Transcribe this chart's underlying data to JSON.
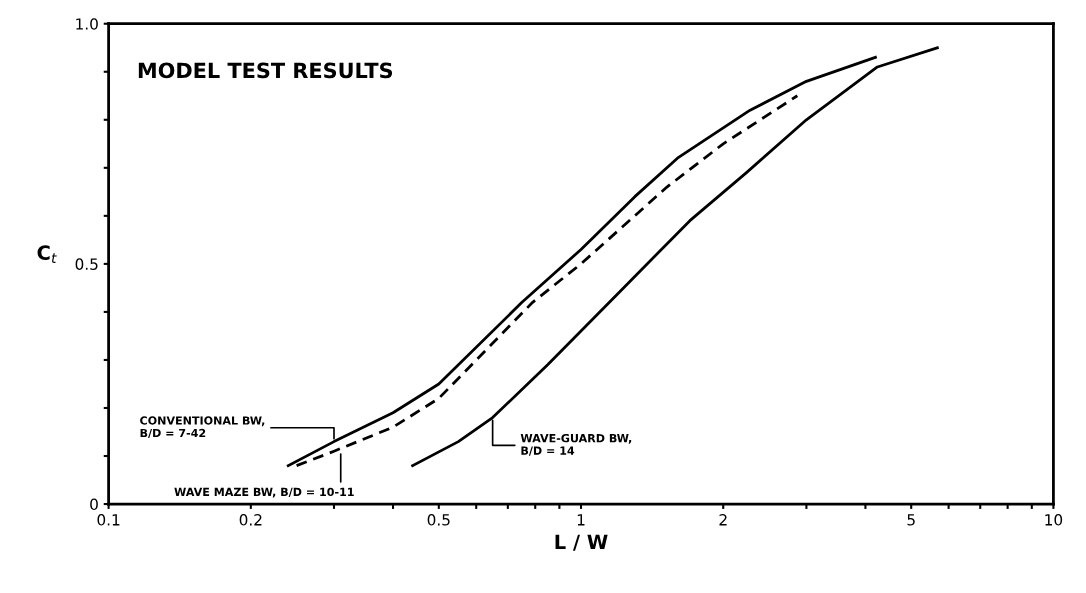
{
  "chart_data": {
    "type": "line",
    "title": "MODEL TEST RESULTS",
    "xlabel": "L / W",
    "ylabel": "C$_{t}$",
    "log": "x",
    "xlim": [
      0.1,
      10
    ],
    "xticks": [
      {
        "value": 0.1,
        "label": "0.1"
      },
      0.2,
      {
        "value": 0.3,
        "label": null
      },
      {
        "value": 0.4,
        "label": null
      },
      0.5,
      {
        "value": 0.6,
        "label": null
      },
      {
        "value": 0.7,
        "label": null
      },
      {
        "value": 0.8,
        "label": null
      },
      {
        "value": 0.9,
        "label": null
      },
      1,
      2,
      {
        "value": 3,
        "label": null
      },
      {
        "value": 4,
        "label": null
      },
      5,
      {
        "value": 6,
        "label": null
      },
      {
        "value": 7,
        "label": null
      },
      {
        "value": 8,
        "label": null
      },
      {
        "value": 9,
        "label": null
      },
      10
    ],
    "ylim": [
      0,
      1.0
    ],
    "yticks": [
      0,
      {
        "value": 0.1,
        "label": null
      },
      {
        "value": 0.2,
        "label": null
      },
      {
        "value": 0.3,
        "label": null
      },
      {
        "value": 0.4,
        "label": null
      },
      0.5,
      {
        "value": 0.6,
        "label": null
      },
      {
        "value": 0.7,
        "label": null
      },
      {
        "value": 0.8,
        "label": null
      },
      {
        "value": 0.9,
        "label": null
      },
      {
        "value": 1.0,
        "label": "1.0"
      }
    ],
    "grid": false,
    "legend": false,
    "marker": "none",
    "series": [
      {
        "color": "#000000",
        "line_style": "solid",
        "x": [
          0.24,
          0.3,
          0.4,
          0.5,
          0.75,
          1.0,
          1.3,
          1.6,
          2.28,
          3.0,
          4.2
        ],
        "values": [
          0.08,
          0.13,
          0.19,
          0.25,
          0.42,
          0.53,
          0.64,
          0.72,
          0.82,
          0.88,
          0.93
        ]
      },
      {
        "color": "#000000",
        "line_style": "dashed",
        "x": [
          0.25,
          0.3,
          0.4,
          0.5,
          0.79,
          1.0,
          1.52,
          2.0,
          2.87
        ],
        "values": [
          0.08,
          0.11,
          0.16,
          0.22,
          0.42,
          0.5,
          0.66,
          0.75,
          0.85
        ]
      },
      {
        "color": "#000000",
        "line_style": "solid",
        "x": [
          0.44,
          0.55,
          0.65,
          0.85,
          1.23,
          1.7,
          2.24,
          3.0,
          4.24,
          5.68
        ],
        "values": [
          0.08,
          0.13,
          0.18,
          0.29,
          0.45,
          0.59,
          0.69,
          0.8,
          0.91,
          0.95
        ]
      }
    ],
    "annotations": [
      {
        "text": "CONVENTIONAL BW,\nB/D = 7-42",
        "x": 0.3,
        "y": 0.13
      },
      {
        "text": "WAVE MAZE BW, B/D = 10-11",
        "x": 0.31,
        "y": 0.11
      },
      {
        "text": "WAVE-GUARD BW,\nB/D = 14",
        "x": 0.65,
        "y": 0.18
      }
    ]
  }
}
